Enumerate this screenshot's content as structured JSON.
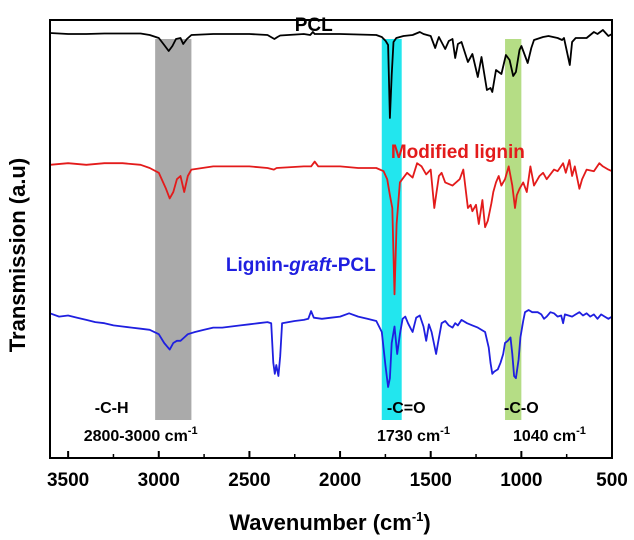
{
  "chart_data": {
    "type": "line",
    "title": "",
    "xlabel": "Wavenumber (cm",
    "xlabel_sup": "-1",
    "xlabel_tail": ")",
    "ylabel": "Transmission (a.u)",
    "xlim": [
      3600,
      500
    ],
    "x_reversed": true,
    "x_ticks": [
      3500,
      3000,
      2500,
      2000,
      1500,
      1000,
      500
    ],
    "y_ticks_shown": false,
    "grid": false,
    "legend": "none",
    "series": [
      {
        "name": "PCL",
        "color": "#000000",
        "points": [
          [
            3600,
            97
          ],
          [
            3500,
            96
          ],
          [
            3400,
            96
          ],
          [
            3300,
            96.5
          ],
          [
            3200,
            96.5
          ],
          [
            3100,
            96.5
          ],
          [
            3050,
            95
          ],
          [
            3000,
            92
          ],
          [
            2970,
            85
          ],
          [
            2945,
            79
          ],
          [
            2925,
            84
          ],
          [
            2905,
            91
          ],
          [
            2880,
            92
          ],
          [
            2865,
            86
          ],
          [
            2845,
            91
          ],
          [
            2820,
            95
          ],
          [
            2700,
            96
          ],
          [
            2500,
            96
          ],
          [
            2400,
            95
          ],
          [
            2362,
            91
          ],
          [
            2345,
            93
          ],
          [
            2330,
            94.5
          ],
          [
            2200,
            96
          ],
          [
            2165,
            95
          ],
          [
            2150,
            98
          ],
          [
            2140,
            96
          ],
          [
            2000,
            96
          ],
          [
            1900,
            95.5
          ],
          [
            1800,
            95
          ],
          [
            1770,
            93
          ],
          [
            1748,
            89
          ],
          [
            1735,
            85
          ],
          [
            1725,
            12
          ],
          [
            1715,
            55
          ],
          [
            1705,
            88
          ],
          [
            1690,
            92
          ],
          [
            1650,
            94
          ],
          [
            1600,
            95
          ],
          [
            1560,
            98
          ],
          [
            1540,
            96
          ],
          [
            1500,
            94
          ],
          [
            1475,
            82
          ],
          [
            1465,
            88
          ],
          [
            1455,
            93
          ],
          [
            1420,
            81
          ],
          [
            1400,
            89
          ],
          [
            1380,
            91
          ],
          [
            1365,
            72
          ],
          [
            1350,
            86
          ],
          [
            1330,
            88
          ],
          [
            1295,
            68
          ],
          [
            1270,
            76
          ],
          [
            1240,
            53
          ],
          [
            1220,
            73
          ],
          [
            1190,
            40
          ],
          [
            1170,
            42
          ],
          [
            1160,
            38
          ],
          [
            1140,
            60
          ],
          [
            1110,
            56
          ],
          [
            1085,
            75
          ],
          [
            1065,
            70
          ],
          [
            1045,
            54
          ],
          [
            1030,
            58
          ],
          [
            1010,
            80
          ],
          [
            1000,
            84
          ],
          [
            965,
            67
          ],
          [
            945,
            82
          ],
          [
            930,
            90
          ],
          [
            880,
            93
          ],
          [
            850,
            94
          ],
          [
            800,
            92
          ],
          [
            775,
            90
          ],
          [
            765,
            92
          ],
          [
            733,
            65
          ],
          [
            720,
            88
          ],
          [
            700,
            92
          ],
          [
            640,
            92
          ],
          [
            600,
            98
          ],
          [
            580,
            96
          ],
          [
            550,
            100
          ],
          [
            520,
            94
          ],
          [
            500,
            96
          ]
        ]
      },
      {
        "name": "Modified lignin",
        "color": "#e31b1b",
        "points": [
          [
            3600,
            97
          ],
          [
            3500,
            98
          ],
          [
            3400,
            97
          ],
          [
            3300,
            98
          ],
          [
            3200,
            98
          ],
          [
            3100,
            97
          ],
          [
            3050,
            95
          ],
          [
            3000,
            92
          ],
          [
            2960,
            82
          ],
          [
            2940,
            76
          ],
          [
            2920,
            80
          ],
          [
            2900,
            88
          ],
          [
            2880,
            90
          ],
          [
            2860,
            80
          ],
          [
            2840,
            90
          ],
          [
            2820,
            94
          ],
          [
            2700,
            96
          ],
          [
            2500,
            96
          ],
          [
            2400,
            95
          ],
          [
            2365,
            94
          ],
          [
            2350,
            95
          ],
          [
            2200,
            96
          ],
          [
            2160,
            96
          ],
          [
            2140,
            99
          ],
          [
            2120,
            96
          ],
          [
            2000,
            96
          ],
          [
            1900,
            95
          ],
          [
            1800,
            95
          ],
          [
            1760,
            93
          ],
          [
            1740,
            88
          ],
          [
            1725,
            78
          ],
          [
            1712,
            70
          ],
          [
            1700,
            16
          ],
          [
            1688,
            60
          ],
          [
            1670,
            86
          ],
          [
            1650,
            89
          ],
          [
            1630,
            92
          ],
          [
            1600,
            89
          ],
          [
            1575,
            98
          ],
          [
            1550,
            96
          ],
          [
            1525,
            91
          ],
          [
            1500,
            94
          ],
          [
            1480,
            70
          ],
          [
            1470,
            78
          ],
          [
            1455,
            90
          ],
          [
            1440,
            92
          ],
          [
            1420,
            86
          ],
          [
            1380,
            84
          ],
          [
            1340,
            88
          ],
          [
            1320,
            94
          ],
          [
            1295,
            70
          ],
          [
            1280,
            72
          ],
          [
            1270,
            68
          ],
          [
            1250,
            72
          ],
          [
            1235,
            60
          ],
          [
            1215,
            75
          ],
          [
            1200,
            58
          ],
          [
            1185,
            62
          ],
          [
            1165,
            73
          ],
          [
            1155,
            80
          ],
          [
            1140,
            86
          ],
          [
            1125,
            90
          ],
          [
            1110,
            84
          ],
          [
            1090,
            88
          ],
          [
            1070,
            96
          ],
          [
            1050,
            84
          ],
          [
            1035,
            70
          ],
          [
            1025,
            78
          ],
          [
            1010,
            82
          ],
          [
            990,
            86
          ],
          [
            970,
            80
          ],
          [
            950,
            96
          ],
          [
            930,
            84
          ],
          [
            900,
            90
          ],
          [
            880,
            92
          ],
          [
            860,
            88
          ],
          [
            820,
            94
          ],
          [
            800,
            93
          ],
          [
            770,
            98
          ],
          [
            755,
            92
          ],
          [
            735,
            100
          ],
          [
            720,
            90
          ],
          [
            705,
            96
          ],
          [
            680,
            82
          ],
          [
            665,
            88
          ],
          [
            640,
            94
          ],
          [
            600,
            93
          ],
          [
            570,
            98
          ],
          [
            550,
            96
          ],
          [
            520,
            94
          ],
          [
            500,
            93
          ]
        ]
      },
      {
        "name": "Lignin-graft-PCL",
        "color": "#1f1fe0",
        "points": [
          [
            3600,
            97
          ],
          [
            3550,
            94
          ],
          [
            3500,
            95
          ],
          [
            3450,
            93
          ],
          [
            3400,
            91
          ],
          [
            3350,
            89
          ],
          [
            3300,
            88
          ],
          [
            3250,
            86
          ],
          [
            3200,
            85
          ],
          [
            3150,
            84
          ],
          [
            3100,
            83
          ],
          [
            3050,
            82
          ],
          [
            3000,
            78
          ],
          [
            2970,
            70
          ],
          [
            2940,
            64
          ],
          [
            2920,
            70
          ],
          [
            2900,
            72
          ],
          [
            2880,
            72
          ],
          [
            2860,
            75
          ],
          [
            2840,
            78
          ],
          [
            2800,
            80
          ],
          [
            2750,
            82
          ],
          [
            2700,
            84
          ],
          [
            2650,
            84
          ],
          [
            2600,
            85
          ],
          [
            2550,
            86
          ],
          [
            2500,
            87
          ],
          [
            2450,
            88
          ],
          [
            2400,
            89
          ],
          [
            2380,
            88
          ],
          [
            2368,
            52
          ],
          [
            2360,
            42
          ],
          [
            2352,
            50
          ],
          [
            2340,
            40
          ],
          [
            2330,
            58
          ],
          [
            2320,
            88
          ],
          [
            2250,
            90
          ],
          [
            2200,
            91
          ],
          [
            2175,
            92
          ],
          [
            2160,
            99
          ],
          [
            2145,
            93
          ],
          [
            2100,
            92
          ],
          [
            2050,
            93
          ],
          [
            2000,
            94
          ],
          [
            1950,
            97
          ],
          [
            1900,
            94
          ],
          [
            1850,
            92
          ],
          [
            1800,
            90
          ],
          [
            1770,
            80
          ],
          [
            1750,
            50
          ],
          [
            1735,
            30
          ],
          [
            1725,
            38
          ],
          [
            1715,
            70
          ],
          [
            1700,
            85
          ],
          [
            1685,
            60
          ],
          [
            1670,
            78
          ],
          [
            1655,
            92
          ],
          [
            1640,
            94
          ],
          [
            1625,
            88
          ],
          [
            1610,
            83
          ],
          [
            1600,
            80
          ],
          [
            1580,
            93
          ],
          [
            1560,
            95
          ],
          [
            1540,
            85
          ],
          [
            1525,
            72
          ],
          [
            1510,
            87
          ],
          [
            1495,
            80
          ],
          [
            1470,
            60
          ],
          [
            1460,
            70
          ],
          [
            1440,
            88
          ],
          [
            1420,
            90
          ],
          [
            1400,
            86
          ],
          [
            1380,
            84
          ],
          [
            1365,
            88
          ],
          [
            1350,
            86
          ],
          [
            1330,
            91
          ],
          [
            1300,
            88
          ],
          [
            1270,
            86
          ],
          [
            1240,
            84
          ],
          [
            1200,
            80
          ],
          [
            1180,
            66
          ],
          [
            1170,
            52
          ],
          [
            1160,
            42
          ],
          [
            1150,
            44
          ],
          [
            1130,
            46
          ],
          [
            1115,
            52
          ],
          [
            1100,
            60
          ],
          [
            1090,
            70
          ],
          [
            1075,
            72
          ],
          [
            1060,
            75
          ],
          [
            1050,
            60
          ],
          [
            1040,
            40
          ],
          [
            1030,
            38
          ],
          [
            1015,
            55
          ],
          [
            1005,
            75
          ],
          [
            990,
            90
          ],
          [
            980,
            98
          ],
          [
            960,
            100
          ],
          [
            940,
            98
          ],
          [
            910,
            98
          ],
          [
            890,
            96
          ],
          [
            875,
            92
          ],
          [
            860,
            94
          ],
          [
            840,
            98
          ],
          [
            820,
            97
          ],
          [
            800,
            94
          ],
          [
            780,
            95
          ],
          [
            770,
            88
          ],
          [
            760,
            96
          ],
          [
            740,
            95
          ],
          [
            720,
            94
          ],
          [
            700,
            96
          ],
          [
            680,
            98
          ],
          [
            660,
            95
          ],
          [
            640,
            97
          ],
          [
            620,
            94
          ],
          [
            600,
            96
          ],
          [
            580,
            92
          ],
          [
            560,
            96
          ],
          [
            540,
            94
          ],
          [
            520,
            92
          ],
          [
            500,
            94
          ]
        ]
      }
    ],
    "series_labels": [
      {
        "text": "PCL",
        "color": "#000000",
        "x": 2250
      },
      {
        "text_parts": [
          "Modified lignin"
        ],
        "color": "#e31b1b",
        "x": 1720
      },
      {
        "text_parts": [
          "Lignin-",
          "graft",
          "-PCL"
        ],
        "color": "#1f1fe0",
        "x": 2630
      }
    ],
    "highlight_bands": [
      {
        "from": 3020,
        "to": 2820,
        "color": "#aaaaaa",
        "label": "-C-H",
        "range_label": "2800-3000 cm",
        "range_sup": "-1"
      },
      {
        "from": 1770,
        "to": 1660,
        "color": "#22e6ee",
        "label": "-C=O",
        "range_label": "1730 cm",
        "range_sup": "-1"
      },
      {
        "from": 1090,
        "to": 1000,
        "color": "#b5dd85",
        "label": "-C-O",
        "range_label": "1040 cm",
        "range_sup": "-1"
      }
    ]
  }
}
